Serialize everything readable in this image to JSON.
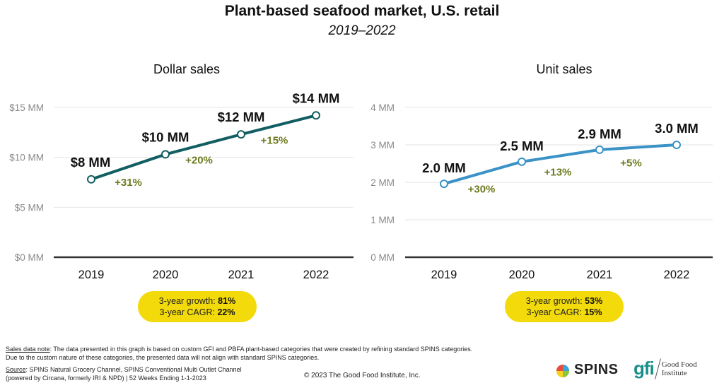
{
  "header": {
    "title": "Plant-based seafood market, U.S. retail",
    "subtitle": "2019–2022"
  },
  "chart_data": [
    {
      "type": "line",
      "title": "Dollar sales",
      "xlabel": "",
      "ylabel": "",
      "categories": [
        "2019",
        "2020",
        "2021",
        "2022"
      ],
      "values": [
        7.8,
        10.3,
        12.3,
        14.2
      ],
      "value_labels": [
        "$8 MM",
        "$10 MM",
        "$12 MM",
        "$14 MM"
      ],
      "growth_labels": [
        "+31%",
        "+20%",
        "+15%"
      ],
      "yticks": [
        0,
        5,
        10,
        15
      ],
      "ytick_labels": [
        "$0 MM",
        "$5 MM",
        "$10 MM",
        "$15 MM"
      ],
      "ylim": [
        0,
        15
      ],
      "grid": true,
      "line_color": "#125E63",
      "summary": {
        "growth_label": "3-year growth:",
        "growth_value": "81%",
        "cagr_label": "3-year CAGR:",
        "cagr_value": "22%"
      }
    },
    {
      "type": "line",
      "title": "Unit sales",
      "xlabel": "",
      "ylabel": "",
      "categories": [
        "2019",
        "2020",
        "2021",
        "2022"
      ],
      "values": [
        1.96,
        2.55,
        2.87,
        3.0
      ],
      "value_labels": [
        "2.0 MM",
        "2.5 MM",
        "2.9 MM",
        "3.0 MM"
      ],
      "growth_labels": [
        "+30%",
        "+13%",
        "+5%"
      ],
      "yticks": [
        0,
        1,
        2,
        3,
        4
      ],
      "ytick_labels": [
        "0 MM",
        "1 MM",
        "2 MM",
        "3 MM",
        "4 MM"
      ],
      "ylim": [
        0,
        4
      ],
      "grid": true,
      "line_color": "#3A92C6",
      "summary": {
        "growth_label": "3-year growth:",
        "growth_value": "53%",
        "cagr_label": "3-year CAGR:",
        "cagr_value": "15%"
      }
    }
  ],
  "colors": {
    "growth_text": "#6E7A1E",
    "pill": "#F3DA0B",
    "axis": "#333333",
    "grid": "#e6e6e6",
    "tick": "#8a8a8a"
  },
  "footer": {
    "note_label": "Sales data note",
    "note_text": ": The data presented in this graph is based on custom GFI and PBFA plant-based categories that were created by refining standard SPINS categories.",
    "note_text2": "Due to the custom nature of these categories, the presented data will not align with standard SPINS categories.",
    "source_label": "Source",
    "source_text": ": SPINS Natural Grocery Channel, SPINS Conventional Multi Outlet Channel",
    "source_text2": "(powered by Circana, formerly IRI & NPD) | 52 Weeks Ending 1-1-2023",
    "copyright": "© 2023 The Good Food Institute, Inc."
  },
  "logos": {
    "spins": "SPINS",
    "gfi_mark": "gfi",
    "gfi_line1": "Good Food",
    "gfi_line2": "Institute"
  }
}
